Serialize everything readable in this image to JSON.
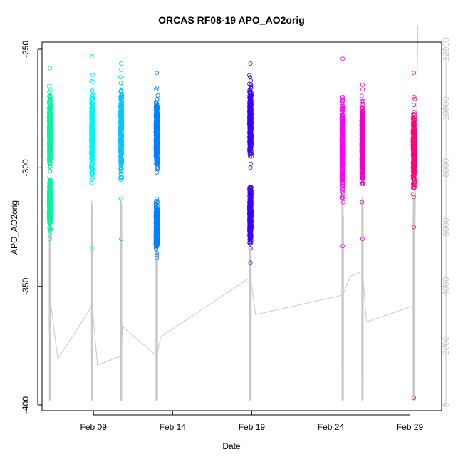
{
  "chart_data": {
    "type": "scatter",
    "title": "ORCAS RF08-19 APO_AO2orig",
    "xlabel": "Date",
    "ylabel": "APO_AO2orig",
    "y_range": [
      -400,
      -250
    ],
    "y_ticks": [
      -400,
      -350,
      -300,
      -250
    ],
    "x_ticks": [
      {
        "label": "Feb 09",
        "date": "2016-02-09"
      },
      {
        "label": "Feb 14",
        "date": "2016-02-14"
      },
      {
        "label": "Feb 19",
        "date": "2016-02-19"
      },
      {
        "label": "Feb 24",
        "date": "2016-02-24"
      },
      {
        "label": "Feb 29",
        "date": "2016-02-29"
      }
    ],
    "x_range": [
      "2016-02-05T18:00",
      "2016-03-02T00:00"
    ],
    "right_axis": {
      "range": [
        0,
        12000
      ],
      "ticks": [
        0,
        2000,
        4000,
        6000,
        8000,
        10000,
        12000
      ],
      "color": "#c8c8c8"
    },
    "series": [
      {
        "flight_date": "2016-02-06T06:00",
        "duration_h": 8,
        "color": "#00f5a0",
        "clusters": [
          {
            "center": -285,
            "spread": 13,
            "min": -328,
            "max": -258
          },
          {
            "center": -315,
            "spread": 8,
            "min": -330,
            "max": -305
          }
        ]
      },
      {
        "flight_date": "2016-02-08T22:00",
        "duration_h": 8,
        "color": "#00f5f5",
        "clusters": [
          {
            "center": -285,
            "spread": 15,
            "min": -334,
            "max": -253
          }
        ]
      },
      {
        "flight_date": "2016-02-10T18:00",
        "duration_h": 7,
        "color": "#00c8ff",
        "clusters": [
          {
            "center": -285,
            "spread": 16,
            "min": -330,
            "max": -256
          }
        ]
      },
      {
        "flight_date": "2016-02-13T00:00",
        "duration_h": 9,
        "color": "#0080ff",
        "clusters": [
          {
            "center": -285,
            "spread": 12,
            "min": -302,
            "max": -260
          },
          {
            "center": -325,
            "spread": 8,
            "min": -338,
            "max": -313
          }
        ]
      },
      {
        "flight_date": "2016-02-18T22:00",
        "duration_h": 9,
        "color": "#3a00ff",
        "clusters": [
          {
            "center": -280,
            "spread": 12,
            "min": -300,
            "max": -256
          },
          {
            "center": -320,
            "spread": 10,
            "min": -340,
            "max": -308
          }
        ]
      },
      {
        "flight_date": "2016-02-24T18:00",
        "duration_h": 9,
        "color": "#ff00ff",
        "clusters": [
          {
            "center": -290,
            "spread": 16,
            "min": -333,
            "max": -254
          }
        ]
      },
      {
        "flight_date": "2016-02-26T00:00",
        "duration_h": 8,
        "color": "#ee00cc",
        "clusters": [
          {
            "center": -290,
            "spread": 14,
            "min": -330,
            "max": -265
          }
        ]
      },
      {
        "flight_date": "2016-02-29T06:00",
        "duration_h": 9,
        "color": "#ff0080",
        "clusters": [
          {
            "center": -292,
            "spread": 14,
            "min": -325,
            "max": -260
          }
        ]
      }
    ],
    "overlay_line": {
      "name": "",
      "color": "#c8c8c8",
      "baseline_points": [
        [
          "2016-02-06T06:00",
          3600
        ],
        [
          "2016-02-06T18:00",
          1550
        ],
        [
          "2016-02-08T22:00",
          3350
        ],
        [
          "2016-02-09T06:00",
          1350
        ],
        [
          "2016-02-10T18:00",
          1650
        ],
        [
          "2016-02-10T20:00",
          2650
        ],
        [
          "2016-02-13T00:00",
          1650
        ],
        [
          "2016-02-13T06:00",
          2300
        ],
        [
          "2016-02-18T22:00",
          4300
        ],
        [
          "2016-02-19T06:00",
          3050
        ],
        [
          "2016-02-24T18:00",
          3700
        ],
        [
          "2016-02-25T06:00",
          4350
        ],
        [
          "2016-02-26T00:00",
          4500
        ],
        [
          "2016-02-26T06:00",
          2800
        ],
        [
          "2016-02-29T06:00",
          3350
        ],
        [
          "2016-02-29T12:00",
          12800
        ]
      ]
    },
    "outliers": [
      {
        "date": "2016-02-29T06:00",
        "value": -397,
        "color": "#ff0080"
      }
    ]
  }
}
